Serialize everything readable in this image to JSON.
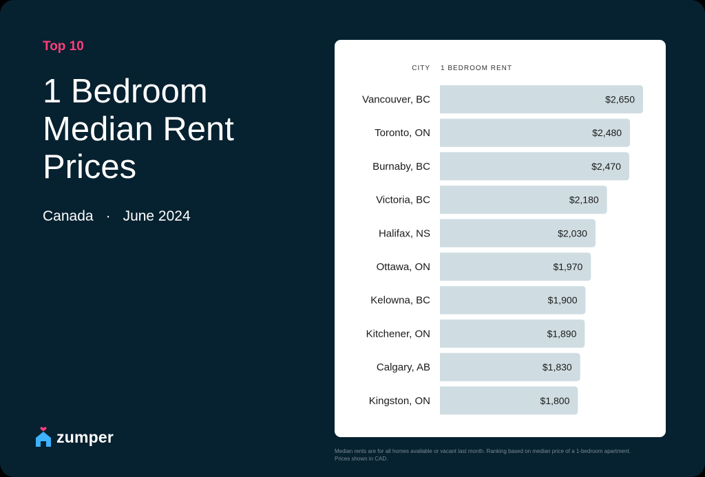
{
  "header": {
    "eyebrow": "Top 10",
    "title": "1 Bedroom Median Rent Prices",
    "location": "Canada",
    "separator": "·",
    "period": "June 2024"
  },
  "brand": {
    "name": "zumper",
    "icon": "house-heart-icon",
    "icon_color": "#3db2ff",
    "heart_color": "#ff3f7c"
  },
  "colors": {
    "background": "#062130",
    "accent": "#ff3f7c",
    "bar": "#cfdde2",
    "card": "#ffffff"
  },
  "chart_data": {
    "type": "bar",
    "orientation": "horizontal",
    "category_header": "CITY",
    "value_header": "1 BEDROOM RENT",
    "categories": [
      "Vancouver, BC",
      "Toronto, ON",
      "Burnaby, BC",
      "Victoria, BC",
      "Halifax, NS",
      "Ottawa, ON",
      "Kelowna, BC",
      "Kitchener, ON",
      "Calgary, AB",
      "Kingston, ON"
    ],
    "values": [
      2650,
      2480,
      2470,
      2180,
      2030,
      1970,
      1900,
      1890,
      1830,
      1800
    ],
    "value_labels": [
      "$2,650",
      "$2,480",
      "$2,470",
      "$2,180",
      "$2,030",
      "$1,970",
      "$1,900",
      "$1,890",
      "$1,830",
      "$1,800"
    ],
    "grid": false,
    "legend": "none"
  },
  "footnote": "Median rents are for all homes available or vacant last month. Ranking based on median price of a 1-bedroom apartment. Prices shown in CAD."
}
